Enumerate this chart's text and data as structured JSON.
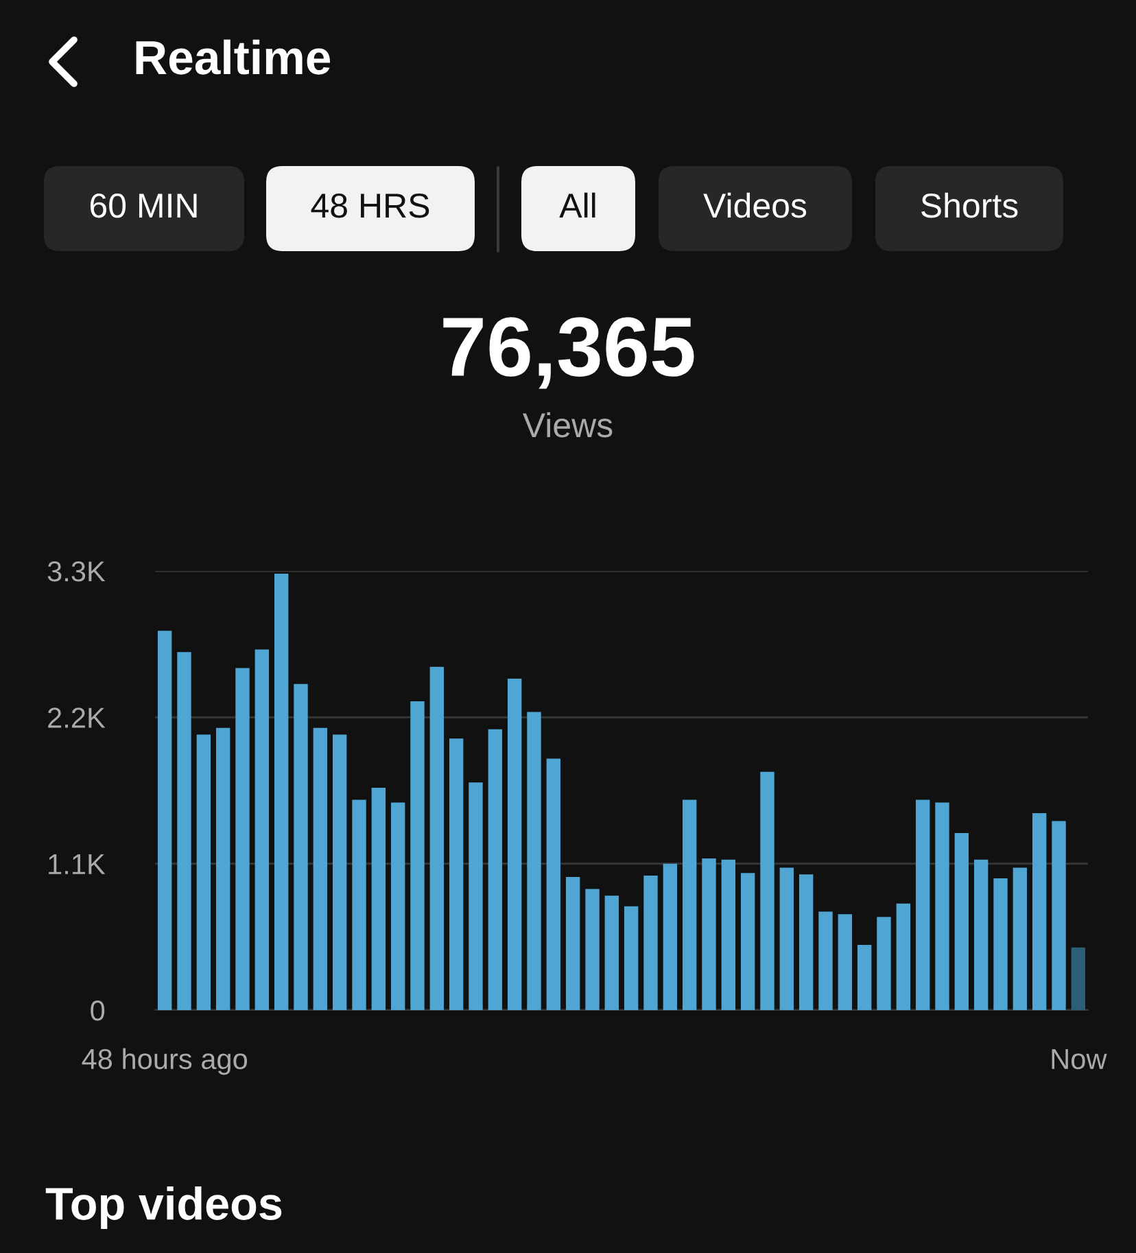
{
  "chart_data": {
    "type": "bar",
    "title": "Realtime",
    "annotations": [
      "60 MIN",
      "48 HRS",
      "All",
      "Videos",
      "Shorts",
      "76,365",
      "Views",
      "Top videos"
    ],
    "categories": [
      "48 hours ago",
      null,
      null,
      null,
      null,
      null,
      null,
      null,
      null,
      null,
      null,
      null,
      null,
      null,
      null,
      null,
      null,
      null,
      null,
      null,
      null,
      null,
      null,
      null,
      null,
      null,
      null,
      null,
      null,
      null,
      null,
      null,
      null,
      null,
      null,
      null,
      null,
      null,
      null,
      null,
      null,
      null,
      null,
      null,
      null,
      null,
      null,
      "Now"
    ],
    "values": [
      2850,
      2690,
      2070,
      2120,
      2570,
      2710,
      3280,
      2450,
      2120,
      2070,
      1580,
      1670,
      1560,
      2320,
      2580,
      2040,
      1710,
      2110,
      2490,
      2240,
      1890,
      1000,
      910,
      860,
      780,
      1010,
      1100,
      1580,
      1140,
      1130,
      1030,
      1790,
      1070,
      1020,
      740,
      720,
      490,
      700,
      800,
      1580,
      1560,
      1330,
      1130,
      990,
      1070,
      1480,
      1420,
      470
    ],
    "colors": [
      "#4fa6d3",
      "#4fa6d3",
      "#4fa6d3",
      "#4fa6d3",
      "#4fa6d3",
      "#4fa6d3",
      "#4fa6d3",
      "#4fa6d3",
      "#4fa6d3",
      "#4fa6d3",
      "#4fa6d3",
      "#4fa6d3",
      "#4fa6d3",
      "#4fa6d3",
      "#4fa6d3",
      "#4fa6d3",
      "#4fa6d3",
      "#4fa6d3",
      "#4fa6d3",
      "#4fa6d3",
      "#4fa6d3",
      "#4fa6d3",
      "#4fa6d3",
      "#4fa6d3",
      "#4fa6d3",
      "#4fa6d3",
      "#4fa6d3",
      "#4fa6d3",
      "#4fa6d3",
      "#4fa6d3",
      "#4fa6d3",
      "#4fa6d3",
      "#4fa6d3",
      "#4fa6d3",
      "#4fa6d3",
      "#4fa6d3",
      "#4fa6d3",
      "#4fa6d3",
      "#4fa6d3",
      "#4fa6d3",
      "#4fa6d3",
      "#4fa6d3",
      "#4fa6d3",
      "#4fa6d3",
      "#4fa6d3",
      "#4fa6d3",
      "#4fa6d3",
      "#2b5f77"
    ],
    "ylim": [
      0,
      3300
    ],
    "yticks": [
      0,
      {
        "value": 1100,
        "label": "1.1K"
      },
      {
        "value": 2200,
        "label": "2.2K"
      },
      {
        "value": 3300,
        "label": "3.3K"
      }
    ],
    "grid": "y"
  }
}
